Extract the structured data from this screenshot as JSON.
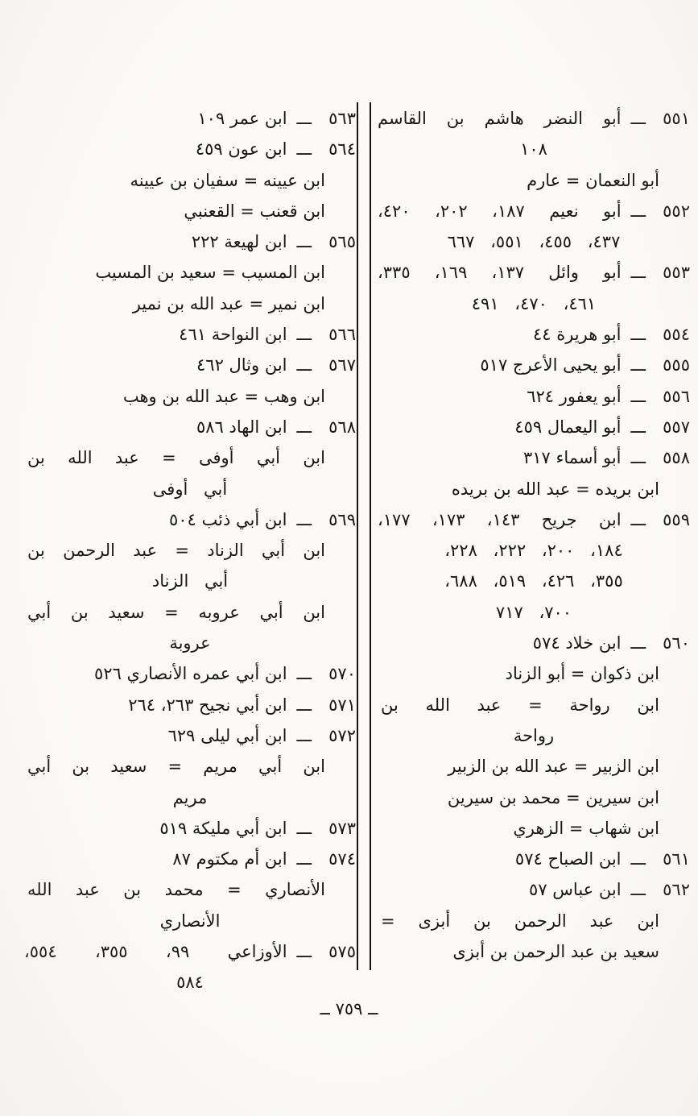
{
  "page": {
    "entry_dash": "ـــ",
    "footer_page_number": "ــ ٧٥٩ ــ",
    "columns": {
      "right": {
        "lines": [
          {
            "t": "entry",
            "num": "٥٥١",
            "text": "أبو النضر هاشم بن القاسم",
            "j": true
          },
          {
            "t": "cont",
            "text": "١٠٨"
          },
          {
            "t": "xref",
            "text": "أبو النعمان = عارم"
          },
          {
            "t": "entry",
            "num": "٥٥٢",
            "text": "أبو نعيم ١٨٧، ٢٠٢، ٤٢٠،",
            "j": true
          },
          {
            "t": "cont",
            "text": "٤٣٧، ٤٥٥، ٥٥١، ٦٦٧"
          },
          {
            "t": "entry",
            "num": "٥٥٣",
            "text": "أبو وائل ١٣٧، ١٦٩، ٣٣٥،",
            "j": true
          },
          {
            "t": "cont",
            "text": "٤٦١، ٤٧٠، ٤٩١"
          },
          {
            "t": "entry",
            "num": "٥٥٤",
            "text": "أبو هريرة ٤٤"
          },
          {
            "t": "entry",
            "num": "٥٥٥",
            "text": "أبو يحيى الأعرج ٥١٧"
          },
          {
            "t": "entry",
            "num": "٥٥٦",
            "text": "أبو يعفور ٦٢٤"
          },
          {
            "t": "entry",
            "num": "٥٥٧",
            "text": "أبو اليعمال ٤٥٩"
          },
          {
            "t": "entry",
            "num": "٥٥٨",
            "text": "أبو أسماء ٣١٧"
          },
          {
            "t": "xref",
            "text": "ابن بريده = عبد الله بن بريده"
          },
          {
            "t": "entry",
            "num": "٥٥٩",
            "text": "ابن جريح ١٤٣، ١٧٣، ١٧٧،",
            "j": true
          },
          {
            "t": "cont",
            "text": "١٨٤، ٢٠٠، ٢٢٢، ٢٢٨،"
          },
          {
            "t": "cont",
            "text": "٣٥٥، ٤٢٦، ٥١٩، ٦٨٨،"
          },
          {
            "t": "cont",
            "text": "٧٠٠، ٧١٧"
          },
          {
            "t": "entry",
            "num": "٥٦٠",
            "text": "ابن خلاد ٥٧٤"
          },
          {
            "t": "xref",
            "text": "ابن ذكوان = أبو الزناد"
          },
          {
            "t": "xref",
            "text": "ابن رواحة = عبد الله بن",
            "j": true
          },
          {
            "t": "cont",
            "text": "رواحة"
          },
          {
            "t": "xref",
            "text": "ابن الزبير = عبد الله بن الزبير"
          },
          {
            "t": "xref",
            "text": "ابن سيرين = محمد بن سيرين"
          },
          {
            "t": "xref",
            "text": "ابن شهاب = الزهري"
          },
          {
            "t": "entry",
            "num": "٥٦١",
            "text": "ابن الصباح ٥٧٤"
          },
          {
            "t": "entry",
            "num": "٥٦٢",
            "text": "ابن عباس ٥٧"
          },
          {
            "t": "xref",
            "text": "ابن عبد الرحمن بن أبزى =",
            "j": true
          },
          {
            "t": "xref",
            "text": "سعيد بن عبد الرحمن بن أبزى"
          }
        ]
      },
      "left": {
        "lines": [
          {
            "t": "entry",
            "num": "٥٦٣",
            "text": "ابن عمر ١٠٩"
          },
          {
            "t": "entry",
            "num": "٥٦٤",
            "text": "ابن عون ٤٥٩"
          },
          {
            "t": "xref",
            "text": "ابن عيينه = سفيان بن عيينه"
          },
          {
            "t": "xref",
            "text": "ابن قعنب = القعنبي"
          },
          {
            "t": "entry",
            "num": "٥٦٥",
            "text": "ابن لهيعة ٢٢٢"
          },
          {
            "t": "xref",
            "text": "ابن المسيب = سعيد بن المسيب"
          },
          {
            "t": "xref",
            "text": "ابن نمير = عبد الله بن نمير"
          },
          {
            "t": "entry",
            "num": "٥٦٦",
            "text": "ابن النواحة ٤٦١"
          },
          {
            "t": "entry",
            "num": "٥٦٧",
            "text": "ابن وثال ٤٦٢"
          },
          {
            "t": "xref",
            "text": "ابن وهب = عبد الله بن وهب"
          },
          {
            "t": "entry",
            "num": "٥٦٨",
            "text": "ابن الهاد ٥٨٦"
          },
          {
            "t": "xref",
            "text": "ابن أبي أوفى = عبد الله بن",
            "j": true
          },
          {
            "t": "cont",
            "text": "أبي أوفى"
          },
          {
            "t": "entry",
            "num": "٥٦٩",
            "text": "ابن أبي ذئب ٥٠٤"
          },
          {
            "t": "xref",
            "text": "ابن أبي الزناد = عبد الرحمن بن",
            "j": true
          },
          {
            "t": "cont",
            "text": "أبي الزناد"
          },
          {
            "t": "xref",
            "text": "ابن أبي عروبه = سعيد بن أبي",
            "j": true
          },
          {
            "t": "cont",
            "text": "عروبة"
          },
          {
            "t": "entry",
            "num": "٥٧٠",
            "text": "ابن أبي عمره الأنصاري ٥٢٦"
          },
          {
            "t": "entry",
            "num": "٥٧١",
            "text": "ابن أبي نجيح ٢٦٣، ٢٦٤"
          },
          {
            "t": "entry",
            "num": "٥٧٢",
            "text": "ابن أبي ليلى ٦٢٩"
          },
          {
            "t": "xref",
            "text": "ابن أبي مريم = سعيد بن أبي",
            "j": true
          },
          {
            "t": "cont",
            "text": "مريم"
          },
          {
            "t": "entry",
            "num": "٥٧٣",
            "text": "ابن أبي مليكة ٥١٩"
          },
          {
            "t": "entry",
            "num": "٥٧٤",
            "text": "ابن أم مكتوم ٨٧"
          },
          {
            "t": "xref",
            "text": "الأنصاري = محمد بن عبد الله",
            "j": true
          },
          {
            "t": "cont",
            "text": "الأنصاري"
          },
          {
            "t": "entry",
            "num": "٥٧٥",
            "text": "الأوزاعي ٩٩، ٣٥٥، ٥٥٤،",
            "j": true
          },
          {
            "t": "cont",
            "text": "٥٨٤"
          }
        ]
      }
    }
  }
}
